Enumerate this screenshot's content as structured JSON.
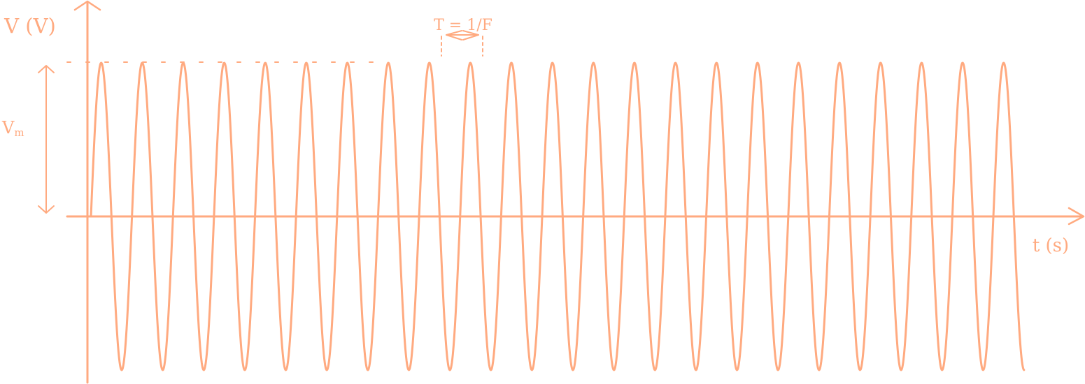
{
  "diagram": {
    "stroke_color": "#FFAA80",
    "y_axis_label": "V (V)",
    "x_axis_label": "t (s)",
    "amplitude_label": "Vm",
    "amplitude_label_main": "V",
    "amplitude_label_sub": "m",
    "period_label": "T = 1/F",
    "cycles": 23
  }
}
